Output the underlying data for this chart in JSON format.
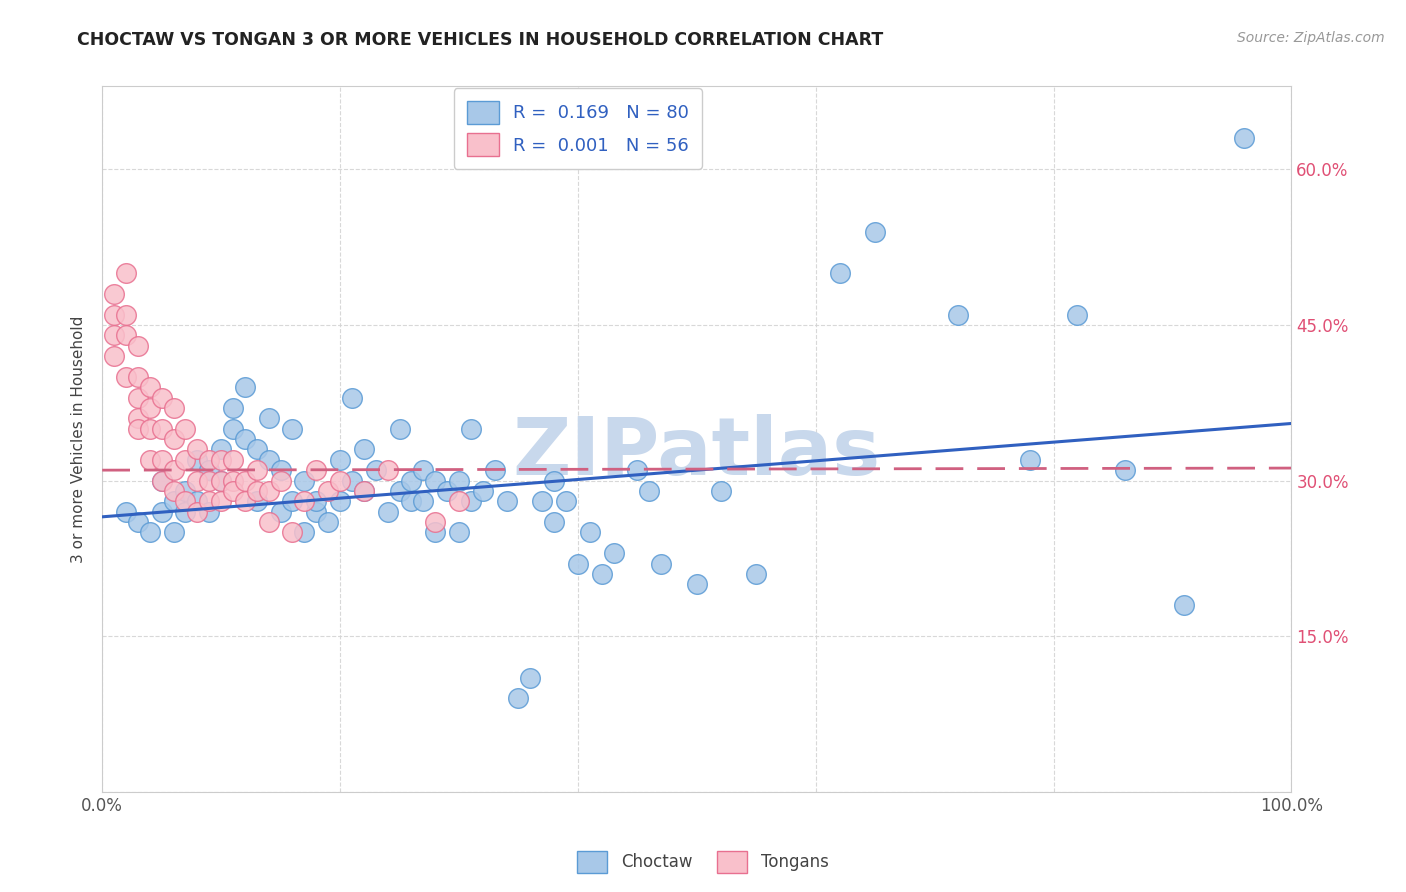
{
  "title": "CHOCTAW VS TONGAN 3 OR MORE VEHICLES IN HOUSEHOLD CORRELATION CHART",
  "source": "Source: ZipAtlas.com",
  "ylabel": "3 or more Vehicles in Household",
  "xlim": [
    0,
    1.0
  ],
  "ylim": [
    0,
    0.68
  ],
  "xtick_positions": [
    0.0,
    0.2,
    0.4,
    0.6,
    0.8,
    1.0
  ],
  "xtick_labels": [
    "0.0%",
    "",
    "",
    "",
    "",
    "100.0%"
  ],
  "ytick_positions": [
    0.0,
    0.15,
    0.3,
    0.45,
    0.6
  ],
  "ytick_labels_right": [
    "",
    "15.0%",
    "30.0%",
    "45.0%",
    "60.0%"
  ],
  "choctaw_fill": "#a8c8e8",
  "choctaw_edge": "#5b9bd5",
  "tongan_fill": "#f9c0cb",
  "tongan_edge": "#e87090",
  "line_blue": "#3060c0",
  "line_pink": "#d06080",
  "watermark": "ZIPatlas",
  "watermark_color": "#c8d8ec",
  "legend_label_blue": "R =  0.169   N = 80",
  "legend_label_pink": "R =  0.001   N = 56",
  "legend_fill_blue": "#a8c8e8",
  "legend_fill_pink": "#f9c0cb",
  "legend_edge_blue": "#5b9bd5",
  "legend_edge_pink": "#e87090",
  "bottom_label_choctaw": "Choctaw",
  "bottom_label_tongans": "Tongans",
  "choctaw_x": [
    0.02,
    0.03,
    0.04,
    0.05,
    0.05,
    0.06,
    0.06,
    0.07,
    0.07,
    0.08,
    0.08,
    0.09,
    0.09,
    0.1,
    0.1,
    0.11,
    0.11,
    0.12,
    0.12,
    0.13,
    0.13,
    0.14,
    0.14,
    0.15,
    0.15,
    0.16,
    0.16,
    0.17,
    0.17,
    0.18,
    0.18,
    0.19,
    0.2,
    0.2,
    0.21,
    0.21,
    0.22,
    0.22,
    0.23,
    0.24,
    0.25,
    0.25,
    0.26,
    0.26,
    0.27,
    0.27,
    0.28,
    0.28,
    0.29,
    0.3,
    0.3,
    0.31,
    0.31,
    0.32,
    0.33,
    0.34,
    0.35,
    0.36,
    0.37,
    0.38,
    0.38,
    0.39,
    0.4,
    0.41,
    0.42,
    0.43,
    0.45,
    0.46,
    0.47,
    0.5,
    0.52,
    0.55,
    0.62,
    0.65,
    0.72,
    0.78,
    0.82,
    0.86,
    0.91,
    0.96
  ],
  "choctaw_y": [
    0.27,
    0.26,
    0.25,
    0.3,
    0.27,
    0.28,
    0.25,
    0.29,
    0.27,
    0.32,
    0.28,
    0.31,
    0.27,
    0.33,
    0.3,
    0.37,
    0.35,
    0.39,
    0.34,
    0.33,
    0.28,
    0.36,
    0.32,
    0.31,
    0.27,
    0.35,
    0.28,
    0.3,
    0.25,
    0.27,
    0.28,
    0.26,
    0.32,
    0.28,
    0.38,
    0.3,
    0.33,
    0.29,
    0.31,
    0.27,
    0.29,
    0.35,
    0.3,
    0.28,
    0.31,
    0.28,
    0.3,
    0.25,
    0.29,
    0.3,
    0.25,
    0.28,
    0.35,
    0.29,
    0.31,
    0.28,
    0.09,
    0.11,
    0.28,
    0.3,
    0.26,
    0.28,
    0.22,
    0.25,
    0.21,
    0.23,
    0.31,
    0.29,
    0.22,
    0.2,
    0.29,
    0.21,
    0.5,
    0.54,
    0.46,
    0.32,
    0.46,
    0.31,
    0.18,
    0.63
  ],
  "tongan_x": [
    0.01,
    0.01,
    0.01,
    0.01,
    0.02,
    0.02,
    0.02,
    0.02,
    0.03,
    0.03,
    0.03,
    0.03,
    0.03,
    0.04,
    0.04,
    0.04,
    0.04,
    0.05,
    0.05,
    0.05,
    0.05,
    0.06,
    0.06,
    0.06,
    0.06,
    0.07,
    0.07,
    0.07,
    0.08,
    0.08,
    0.08,
    0.09,
    0.09,
    0.09,
    0.1,
    0.1,
    0.1,
    0.11,
    0.11,
    0.11,
    0.12,
    0.12,
    0.13,
    0.13,
    0.14,
    0.14,
    0.15,
    0.16,
    0.17,
    0.18,
    0.19,
    0.2,
    0.22,
    0.24,
    0.28,
    0.3
  ],
  "tongan_y": [
    0.48,
    0.46,
    0.44,
    0.42,
    0.5,
    0.46,
    0.44,
    0.4,
    0.43,
    0.4,
    0.38,
    0.36,
    0.35,
    0.39,
    0.37,
    0.35,
    0.32,
    0.38,
    0.35,
    0.32,
    0.3,
    0.37,
    0.34,
    0.31,
    0.29,
    0.35,
    0.32,
    0.28,
    0.33,
    0.3,
    0.27,
    0.32,
    0.3,
    0.28,
    0.32,
    0.3,
    0.28,
    0.32,
    0.3,
    0.29,
    0.3,
    0.28,
    0.31,
    0.29,
    0.29,
    0.26,
    0.3,
    0.25,
    0.28,
    0.31,
    0.29,
    0.3,
    0.29,
    0.31,
    0.26,
    0.28
  ],
  "blue_line_x": [
    0.0,
    1.0
  ],
  "blue_line_y": [
    0.265,
    0.355
  ],
  "pink_line_x": [
    0.0,
    1.0
  ],
  "pink_line_y": [
    0.31,
    0.312
  ]
}
